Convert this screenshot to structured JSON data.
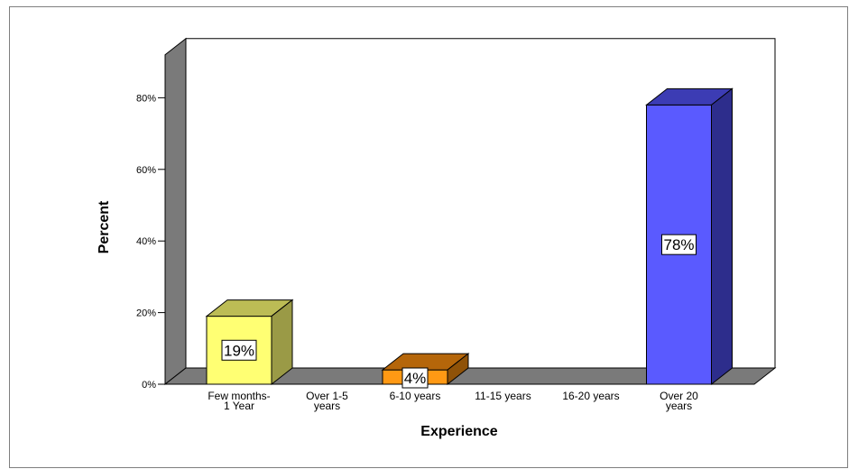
{
  "chart_data": {
    "type": "bar",
    "title": "",
    "xlabel": "Experience",
    "ylabel": "Percent",
    "categories": [
      [
        "Few months-",
        "1 Year"
      ],
      [
        "Over 1-5",
        "years"
      ],
      [
        "6-10 years"
      ],
      [
        "11-15 years"
      ],
      [
        "16-20 years"
      ],
      [
        "Over 20",
        "years"
      ]
    ],
    "values": [
      19,
      0,
      4,
      0,
      0,
      78
    ],
    "data_labels": [
      "19%",
      "",
      "4%",
      "",
      "",
      "78%"
    ],
    "yticks": [
      "0%",
      "20%",
      "40%",
      "60%",
      "80%"
    ],
    "ytick_values": [
      0,
      20,
      40,
      60,
      80
    ],
    "ylim": [
      0,
      80
    ],
    "grid": false,
    "legend": "none",
    "style": "3d",
    "colors": {
      "bars": [
        "#ffff73",
        "",
        "#ff9914",
        "",
        "",
        "#5a5aff"
      ],
      "bar_tops": [
        "#bcbc55",
        "",
        "#b5660a",
        "",
        "",
        "#3c3cb4"
      ],
      "bar_sides": [
        "#9a9a46",
        "",
        "#8f5208",
        "",
        "",
        "#2d2d8c"
      ],
      "back_wall": "#ffffff",
      "side_wall": "#7a7a7a",
      "floor": "#7a7a7a"
    }
  }
}
